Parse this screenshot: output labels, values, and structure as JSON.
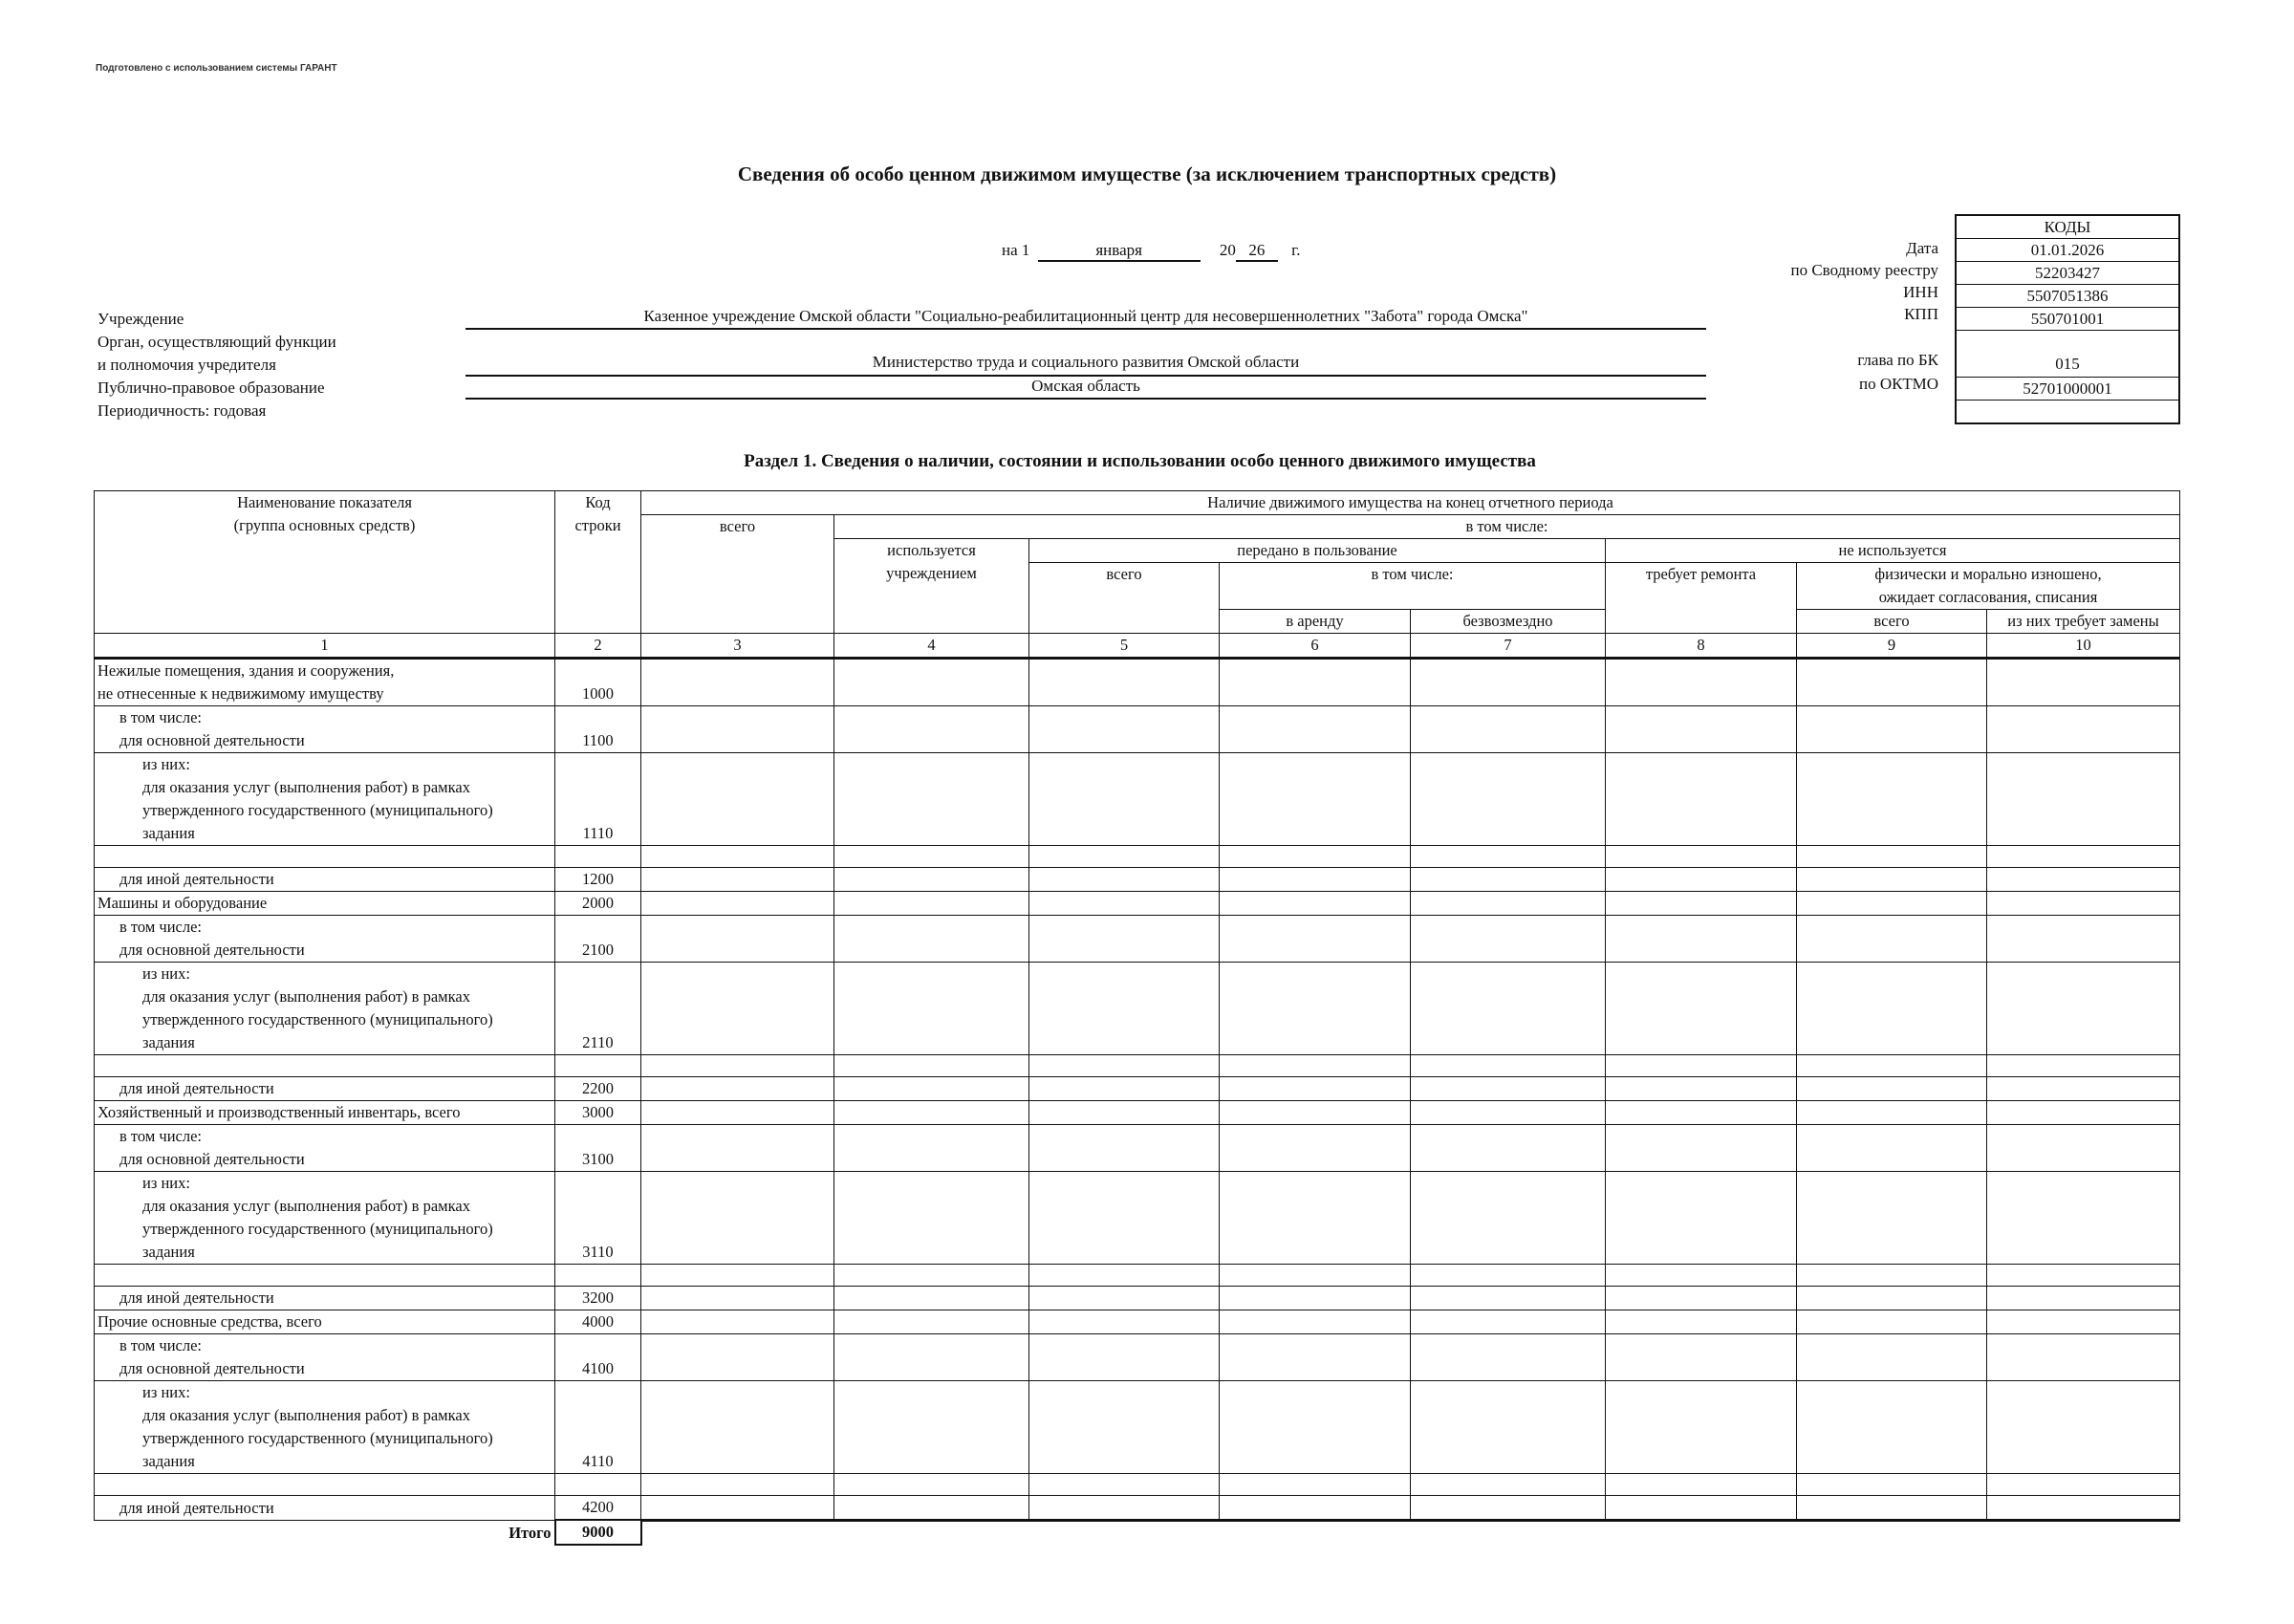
{
  "note": "Подготовлено с использованием системы ГАРАНТ",
  "title": "Сведения об особо ценном движимом имуществе (за исключением транспортных средств)",
  "date": {
    "prefix": "на 1",
    "month": "января",
    "year_prefix": "20",
    "year": "26",
    "suffix": "г."
  },
  "fields": {
    "institution_label": "Учреждение",
    "institution_value": "Казенное учреждение Омской области \"Социально-реабилитационный центр для  несовершеннолетних \"Забота\" города Омска\"",
    "founder_label_1": "Орган, осуществляющий функции",
    "founder_label_2": "и полномочия учредителя",
    "founder_value": "Министерство труда и социального развития Омской области",
    "entity_label": "Публично-правовое образование",
    "entity_value": "Омская область",
    "periodicity": "Периодичность: годовая"
  },
  "codes": {
    "header": "КОДЫ",
    "rows": [
      {
        "label": "Дата",
        "value": "01.01.2026"
      },
      {
        "label": "по Сводному реестру",
        "value": "52203427"
      },
      {
        "label": "ИНН",
        "value": "5507051386"
      },
      {
        "label": "КПП",
        "value": "550701001"
      },
      {
        "label": "глава по БК",
        "value": "015"
      },
      {
        "label": "по ОКТМО",
        "value": "52701000001"
      }
    ]
  },
  "section_title": "Раздел 1. Сведения о наличии, состоянии и использовании особо ценного движимого имущества",
  "table": {
    "headers": {
      "name_1": "Наименование показателя",
      "name_2": "(группа основных средств)",
      "code_1": "Код",
      "code_2": "строки",
      "availability": "Наличие движимого имущества на конец отчетного периода",
      "total": "всего",
      "including": "в том числе:",
      "used_1": "используется",
      "used_2": "учреждением",
      "transferred": "передано в пользование",
      "not_used": "не используется",
      "transferred_total": "всего",
      "transferred_including": "в том числе:",
      "needs_repair": "требует ремонта",
      "worn_1": "физически и морально изношено,",
      "worn_2": "ожидает согласования, списания",
      "rent": "в аренду",
      "free": "безвозмездно",
      "worn_total": "всего",
      "worn_replace": "из них требует замены"
    },
    "column_numbers": [
      "1",
      "2",
      "3",
      "4",
      "5",
      "6",
      "7",
      "8",
      "9",
      "10"
    ],
    "rows": [
      {
        "lines": [
          "Нежилые помещения, здания и сооружения,",
          "не отнесенные к недвижимому имуществу"
        ],
        "code": "1000",
        "indent": 0,
        "h": 50
      },
      {
        "lines": [
          "в том числе:",
          "для основной деятельности"
        ],
        "code": "1100",
        "indent": 1,
        "h": 47
      },
      {
        "lines": [
          "из них:",
          "для оказания услуг (выполнения работ) в рамках",
          "утвержденного государственного (муниципального)",
          "задания"
        ],
        "code": "1110",
        "indent": 2,
        "h": 96
      },
      {
        "lines": [],
        "code": "",
        "indent": 0,
        "h": 23
      },
      {
        "lines": [
          "для иной деятельности"
        ],
        "code": "1200",
        "indent": 1,
        "h": 24
      },
      {
        "lines": [
          "Машины и оборудование"
        ],
        "code": "2000",
        "indent": 0,
        "h": 24
      },
      {
        "lines": [
          "в том числе:",
          "для основной деятельности"
        ],
        "code": "2100",
        "indent": 1,
        "h": 47
      },
      {
        "lines": [
          "из них:",
          "для оказания услуг (выполнения работ) в рамках",
          "утвержденного государственного (муниципального)",
          "задания"
        ],
        "code": "2110",
        "indent": 2,
        "h": 96
      },
      {
        "lines": [],
        "code": "",
        "indent": 0,
        "h": 23
      },
      {
        "lines": [
          "для иной деятельности"
        ],
        "code": "2200",
        "indent": 1,
        "h": 24
      },
      {
        "lines": [
          "Хозяйственный и производственный инвентарь, всего"
        ],
        "code": "3000",
        "indent": 0,
        "h": 24
      },
      {
        "lines": [
          "в том числе:",
          "для основной деятельности"
        ],
        "code": "3100",
        "indent": 1,
        "h": 47
      },
      {
        "lines": [
          "из них:",
          "для оказания услуг (выполнения работ) в рамках",
          "утвержденного государственного (муниципального)",
          "задания"
        ],
        "code": "3110",
        "indent": 2,
        "h": 96
      },
      {
        "lines": [],
        "code": "",
        "indent": 0,
        "h": 23
      },
      {
        "lines": [
          "для иной деятельности"
        ],
        "code": "3200",
        "indent": 1,
        "h": 24
      },
      {
        "lines": [
          "Прочие основные средства, всего"
        ],
        "code": "4000",
        "indent": 0,
        "h": 24
      },
      {
        "lines": [
          "в том числе:",
          "для основной деятельности"
        ],
        "code": "4100",
        "indent": 1,
        "h": 47
      },
      {
        "lines": [
          "из них:",
          "для оказания услуг (выполнения работ) в рамках",
          "утвержденного государственного (муниципального)",
          "задания"
        ],
        "code": "4110",
        "indent": 2,
        "h": 96
      },
      {
        "lines": [],
        "code": "",
        "indent": 0,
        "h": 23
      },
      {
        "lines": [
          "для иной деятельности"
        ],
        "code": "4200",
        "indent": 1,
        "h": 24
      }
    ],
    "total": {
      "label": "Итого",
      "code": "9000"
    }
  }
}
